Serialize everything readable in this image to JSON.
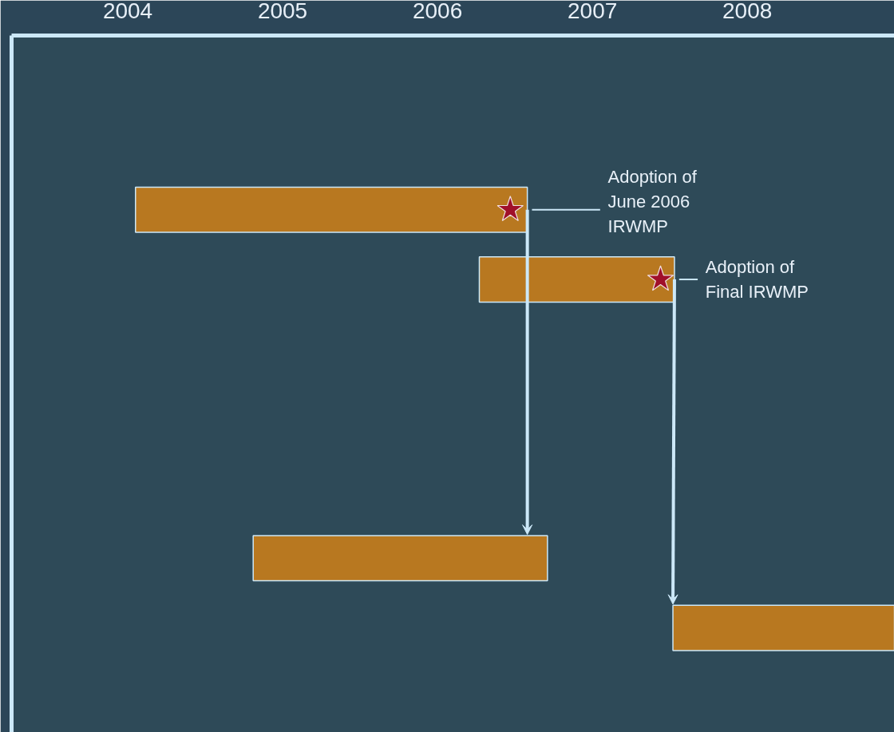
{
  "chart_data": {
    "type": "bar",
    "orientation": "horizontal",
    "categories": [
      null,
      null,
      null,
      null,
      null,
      null,
      null,
      null,
      null,
      null
    ],
    "series": [
      {
        "color": "#b87820",
        "values": [
          null,
          null,
          2.53,
          1.26,
          null,
          null,
          null,
          1.9,
          1.43,
          null
        ],
        "base": [
          null,
          null,
          2004.05,
          2006.27,
          null,
          null,
          null,
          2004.81,
          2007.52,
          null
        ]
      },
      {
        "type": "scatter",
        "marker": "star",
        "color": "#a0102a",
        "values": [
          null,
          null,
          2006.47,
          2007.44,
          null,
          null,
          null,
          null,
          null,
          null
        ]
      }
    ],
    "xlim": [
      2003.25,
      2008.95
    ],
    "xticks": [
      2004,
      2005,
      2006,
      2007,
      2008
    ],
    "tick_labels": "x",
    "grid": false,
    "annotations": [
      "Adoption of\nJune 2006\nIRWMP",
      "Adoption of\nFinal IRWMP"
    ]
  }
}
